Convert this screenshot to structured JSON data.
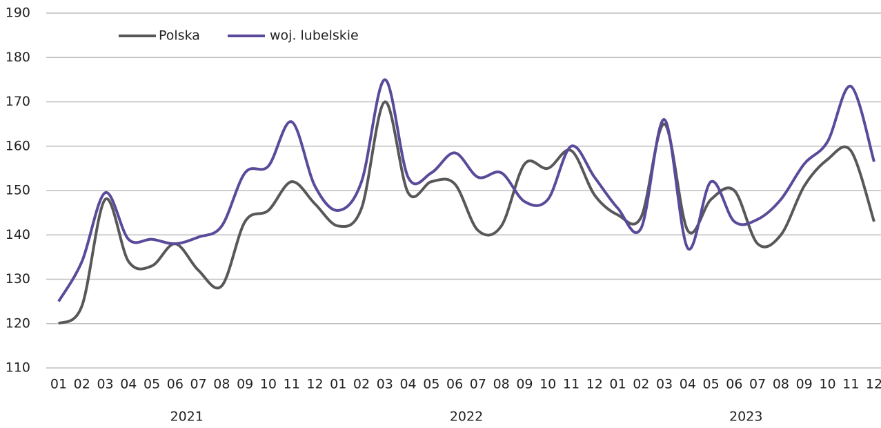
{
  "chart_data": {
    "type": "line",
    "categories": [
      "01",
      "02",
      "03",
      "04",
      "05",
      "06",
      "07",
      "08",
      "09",
      "10",
      "11",
      "12",
      "01",
      "02",
      "03",
      "04",
      "05",
      "06",
      "07",
      "08",
      "09",
      "10",
      "11",
      "12",
      "01",
      "02",
      "03",
      "04",
      "05",
      "06",
      "07",
      "08",
      "09",
      "10",
      "11",
      "12"
    ],
    "x_groups": [
      "2021",
      "2022",
      "2023"
    ],
    "series": [
      {
        "name": "Polska",
        "color": "#58585a",
        "values": [
          120,
          124,
          148,
          134,
          133,
          138,
          132,
          128.5,
          143,
          145.5,
          152,
          147,
          142,
          146,
          170,
          149.5,
          152,
          151.5,
          141,
          142,
          156,
          155,
          159,
          149,
          144.5,
          144,
          165,
          141,
          148,
          150,
          138,
          140,
          151,
          157,
          159,
          143
        ]
      },
      {
        "name": "woj. lubelskie",
        "color": "#5b4a9a",
        "values": [
          125,
          134,
          149.5,
          139,
          139,
          138,
          139.5,
          142,
          154,
          155.5,
          165.5,
          151,
          145.5,
          152,
          175,
          153,
          154,
          158.5,
          153,
          154,
          147.5,
          148,
          160,
          153,
          146,
          141.5,
          166,
          137,
          152,
          143,
          143.5,
          148,
          156,
          161,
          173.5,
          156.5
        ]
      }
    ],
    "ylim": [
      110,
      190
    ],
    "yticks": [
      110,
      120,
      130,
      140,
      150,
      160,
      170,
      180,
      190
    ],
    "grid": true
  }
}
